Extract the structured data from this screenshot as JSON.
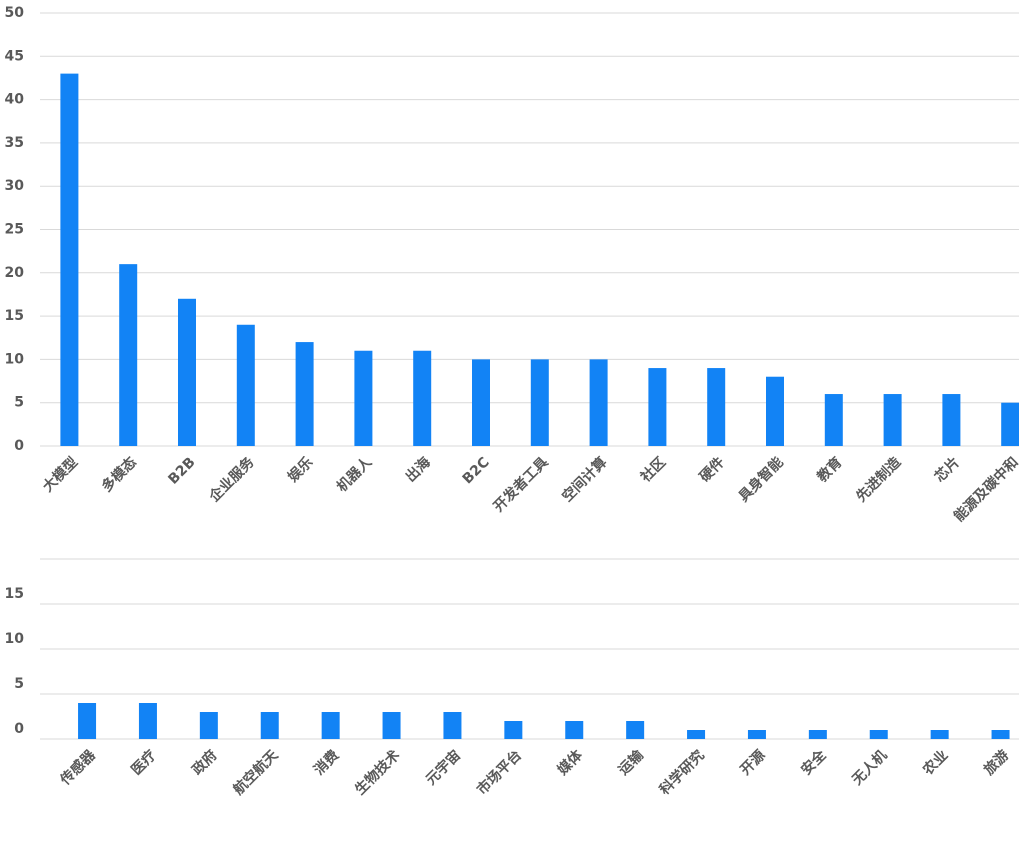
{
  "chart_data": [
    {
      "type": "bar",
      "color": "#1283f5",
      "grid": true,
      "categories": [
        "大模型",
        "多模态",
        "B2B",
        "企业服务",
        "娱乐",
        "机器人",
        "出海",
        "B2C",
        "开发者工具",
        "空间计算",
        "社区",
        "硬件",
        "具身智能",
        "教育",
        "先进制造",
        "芯片",
        "能源及碳中和"
      ],
      "values": [
        43,
        21,
        17,
        14,
        12,
        11,
        11,
        10,
        10,
        10,
        9,
        9,
        8,
        6,
        6,
        6,
        5
      ],
      "ylim": [
        0,
        50
      ],
      "yticks": [
        0,
        5,
        10,
        15,
        20,
        25,
        30,
        35,
        40,
        45,
        50
      ]
    },
    {
      "type": "bar",
      "color": "#1283f5",
      "grid": true,
      "categories": [
        "传感器",
        "医疗",
        "政府",
        "航空航天",
        "消费",
        "生物技术",
        "元宇宙",
        "市场平台",
        "媒体",
        "运输",
        "科学研究",
        "开源",
        "安全",
        "无人机",
        "农业",
        "旅游"
      ],
      "values": [
        4,
        4,
        3,
        3,
        3,
        3,
        3,
        2,
        2,
        2,
        1,
        1,
        1,
        1,
        1,
        1
      ],
      "ylim": [
        0,
        20
      ],
      "yticks": [
        0,
        5,
        10,
        15
      ]
    }
  ]
}
